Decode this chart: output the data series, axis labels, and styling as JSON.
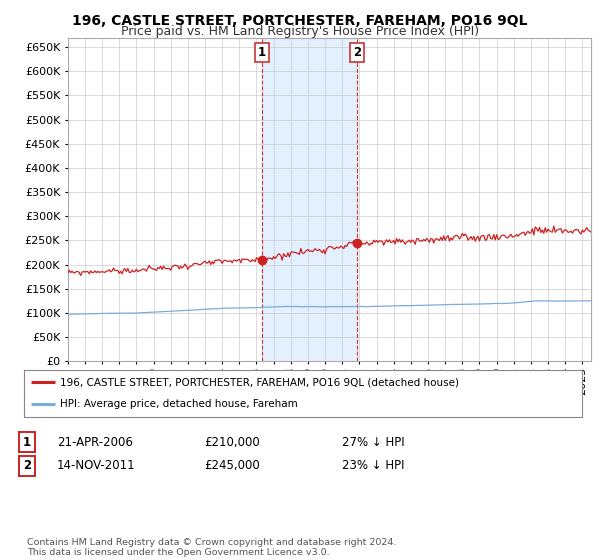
{
  "title": "196, CASTLE STREET, PORTCHESTER, FAREHAM, PO16 9QL",
  "subtitle": "Price paid vs. HM Land Registry's House Price Index (HPI)",
  "ylim": [
    0,
    670000
  ],
  "yticks": [
    0,
    50000,
    100000,
    150000,
    200000,
    250000,
    300000,
    350000,
    400000,
    450000,
    500000,
    550000,
    600000,
    650000
  ],
  "xlim_start": 1995.0,
  "xlim_end": 2025.5,
  "background_color": "#ffffff",
  "plot_bg_color": "#ffffff",
  "grid_color": "#cccccc",
  "hpi_color": "#7aaddc",
  "price_color": "#cc2222",
  "sale1_date": 2006.3,
  "sale1_price": 210000,
  "sale2_date": 2011.87,
  "sale2_price": 245000,
  "sale1_label": "1",
  "sale2_label": "2",
  "annotation_bg": "#ddeeff",
  "legend_line1": "196, CASTLE STREET, PORTCHESTER, FAREHAM, PO16 9QL (detached house)",
  "legend_line2": "HPI: Average price, detached house, Fareham",
  "table_row1": [
    "1",
    "21-APR-2006",
    "£210,000",
    "27% ↓ HPI"
  ],
  "table_row2": [
    "2",
    "14-NOV-2011",
    "£245,000",
    "23% ↓ HPI"
  ],
  "footnote": "Contains HM Land Registry data © Crown copyright and database right 2024.\nThis data is licensed under the Open Government Licence v3.0.",
  "title_fontsize": 10,
  "subtitle_fontsize": 9,
  "tick_fontsize": 8
}
